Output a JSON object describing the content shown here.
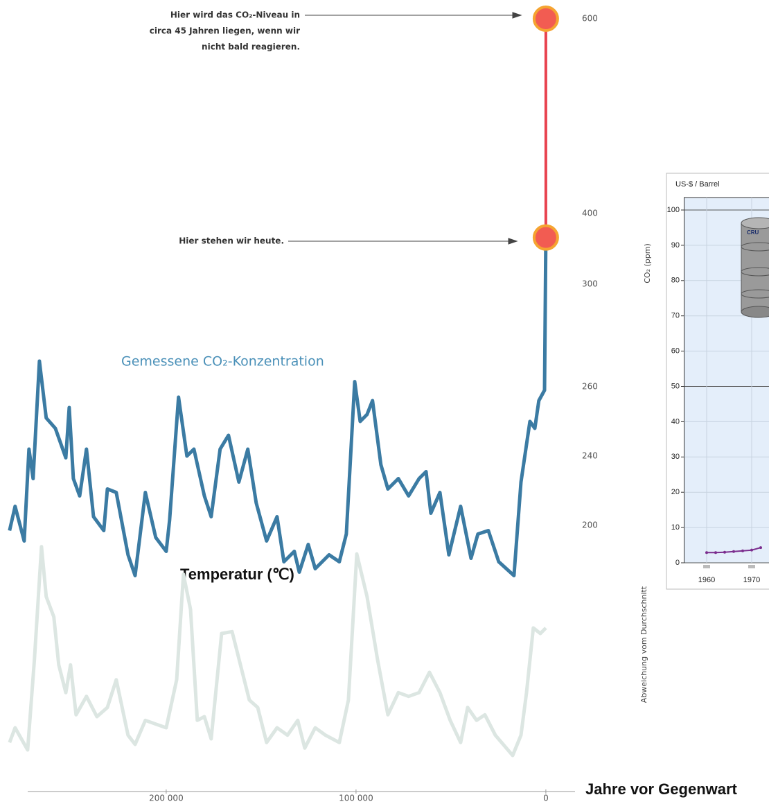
{
  "chart_data": [
    {
      "type": "line",
      "x_label": "Jahre vor Gegenwart",
      "y_label": "CO₂ (ppm)",
      "annotations": [
        [
          "Hier wird das CO₂-Niveau in",
          "circa 45 Jahren liegen, wenn wir",
          "nicht bald reagieren."
        ],
        [
          "Hier stehen wir heute."
        ]
      ],
      "xlim": [
        285000,
        -15000
      ],
      "xticks": [
        {
          "value": 200000,
          "label": "200 000"
        },
        {
          "value": 100000,
          "label": "100 000"
        },
        0
      ],
      "ylim": [
        170,
        600
      ],
      "yticks": [
        200,
        240,
        260,
        300,
        400,
        600
      ],
      "series": [
        {
          "name": "Gemessene CO₂-Konzentration",
          "color": "#3b7ba3",
          "x": [
            282500,
            279600,
            274800,
            272300,
            270100,
            266800,
            263200,
            258400,
            252900,
            251100,
            248900,
            245600,
            242000,
            238300,
            232900,
            231000,
            226300,
            220100,
            216400,
            211000,
            205500,
            200000,
            198200,
            193500,
            189100,
            185400,
            179900,
            176300,
            171600,
            167200,
            161700,
            157000,
            152600,
            147100,
            141600,
            138000,
            132500,
            129900,
            125200,
            121500,
            114200,
            108800,
            105100,
            100700,
            97800,
            94200,
            91300,
            86900,
            83200,
            77700,
            72300,
            66800,
            63100,
            60600,
            55800,
            51100,
            44900,
            39400,
            35800,
            30300,
            24800,
            16800,
            13100,
            8400,
            5800,
            3700,
            700,
            0
          ],
          "values": [
            197,
            211,
            191,
            242,
            227,
            270,
            251,
            248,
            239,
            254,
            227,
            217,
            242,
            205,
            197,
            221,
            219,
            183,
            171,
            219,
            193,
            185,
            203,
            257,
            240,
            242,
            217,
            205,
            242,
            246,
            225,
            242,
            213,
            191,
            205,
            179,
            185,
            173,
            189,
            175,
            183,
            179,
            195,
            262,
            250,
            252,
            256,
            235,
            221,
            227,
            217,
            227,
            231,
            207,
            219,
            183,
            211,
            181,
            195,
            197,
            179,
            171,
            225,
            250,
            248,
            256,
            259,
            366
          ]
        },
        {
          "color": "#e8434f",
          "marker_color": "#f25c52",
          "marker_edge": "#f5a431",
          "x": [
            0,
            0
          ],
          "values": [
            366,
            600
          ]
        }
      ]
    },
    {
      "type": "line",
      "title": "Temperatur (℃)",
      "y_label": "Abweichung vom Durchschnitt",
      "xlim": [
        285000,
        -15000
      ],
      "ylim": [
        -9,
        3
      ],
      "series": [
        {
          "color": "#dce6e2",
          "x": [
            282500,
            279600,
            273000,
            269400,
            265700,
            263200,
            259200,
            256600,
            252900,
            250400,
            247500,
            242000,
            236500,
            231000,
            226300,
            220100,
            216400,
            211000,
            205500,
            200000,
            194500,
            190900,
            187200,
            183600,
            179900,
            176300,
            170800,
            165300,
            159900,
            156200,
            151800,
            147100,
            141600,
            136100,
            130700,
            127000,
            121500,
            116100,
            108800,
            104000,
            99600,
            94200,
            88700,
            83200,
            77700,
            72300,
            66800,
            61300,
            55800,
            50400,
            44900,
            41200,
            36500,
            32100,
            26600,
            17500,
            13100,
            10200,
            6600,
            2900,
            0
          ],
          "values": [
            -8.3,
            -7.5,
            -8.7,
            -3.8,
            2.3,
            -0.4,
            -1.5,
            -4.1,
            -5.6,
            -4.1,
            -6.8,
            -5.8,
            -6.9,
            -6.4,
            -4.9,
            -7.9,
            -8.4,
            -7.1,
            -7.3,
            -7.5,
            -4.9,
            0.8,
            -1.1,
            -7.1,
            -6.9,
            -8.1,
            -2.4,
            -2.3,
            -4.5,
            -6.0,
            -6.4,
            -8.3,
            -7.5,
            -7.9,
            -7.1,
            -8.6,
            -7.5,
            -7.9,
            -8.3,
            -6.0,
            1.9,
            -0.4,
            -3.8,
            -6.8,
            -5.6,
            -5.8,
            -5.6,
            -4.5,
            -5.6,
            -7.1,
            -8.3,
            -6.4,
            -7.1,
            -6.8,
            -7.9,
            -9.0,
            -7.9,
            -5.6,
            -2.1,
            -2.4,
            -2.1
          ]
        }
      ]
    },
    {
      "type": "line",
      "y_label": "US-$ / Barrel",
      "image_label": "CRU",
      "xlim": [
        1955,
        1975
      ],
      "xticks": [
        1960,
        1970
      ],
      "ylim": [
        0,
        100
      ],
      "yticks": [
        0,
        10,
        20,
        30,
        40,
        50,
        60,
        70,
        80,
        90,
        100
      ],
      "grid": true,
      "background": "#e4eefa",
      "series": [
        {
          "color": "#7b2d8e",
          "x": [
            1960,
            1962,
            1964,
            1966,
            1968,
            1970,
            1972
          ],
          "values": [
            2.9,
            2.9,
            3.0,
            3.2,
            3.4,
            3.6,
            4.3
          ]
        }
      ]
    }
  ]
}
